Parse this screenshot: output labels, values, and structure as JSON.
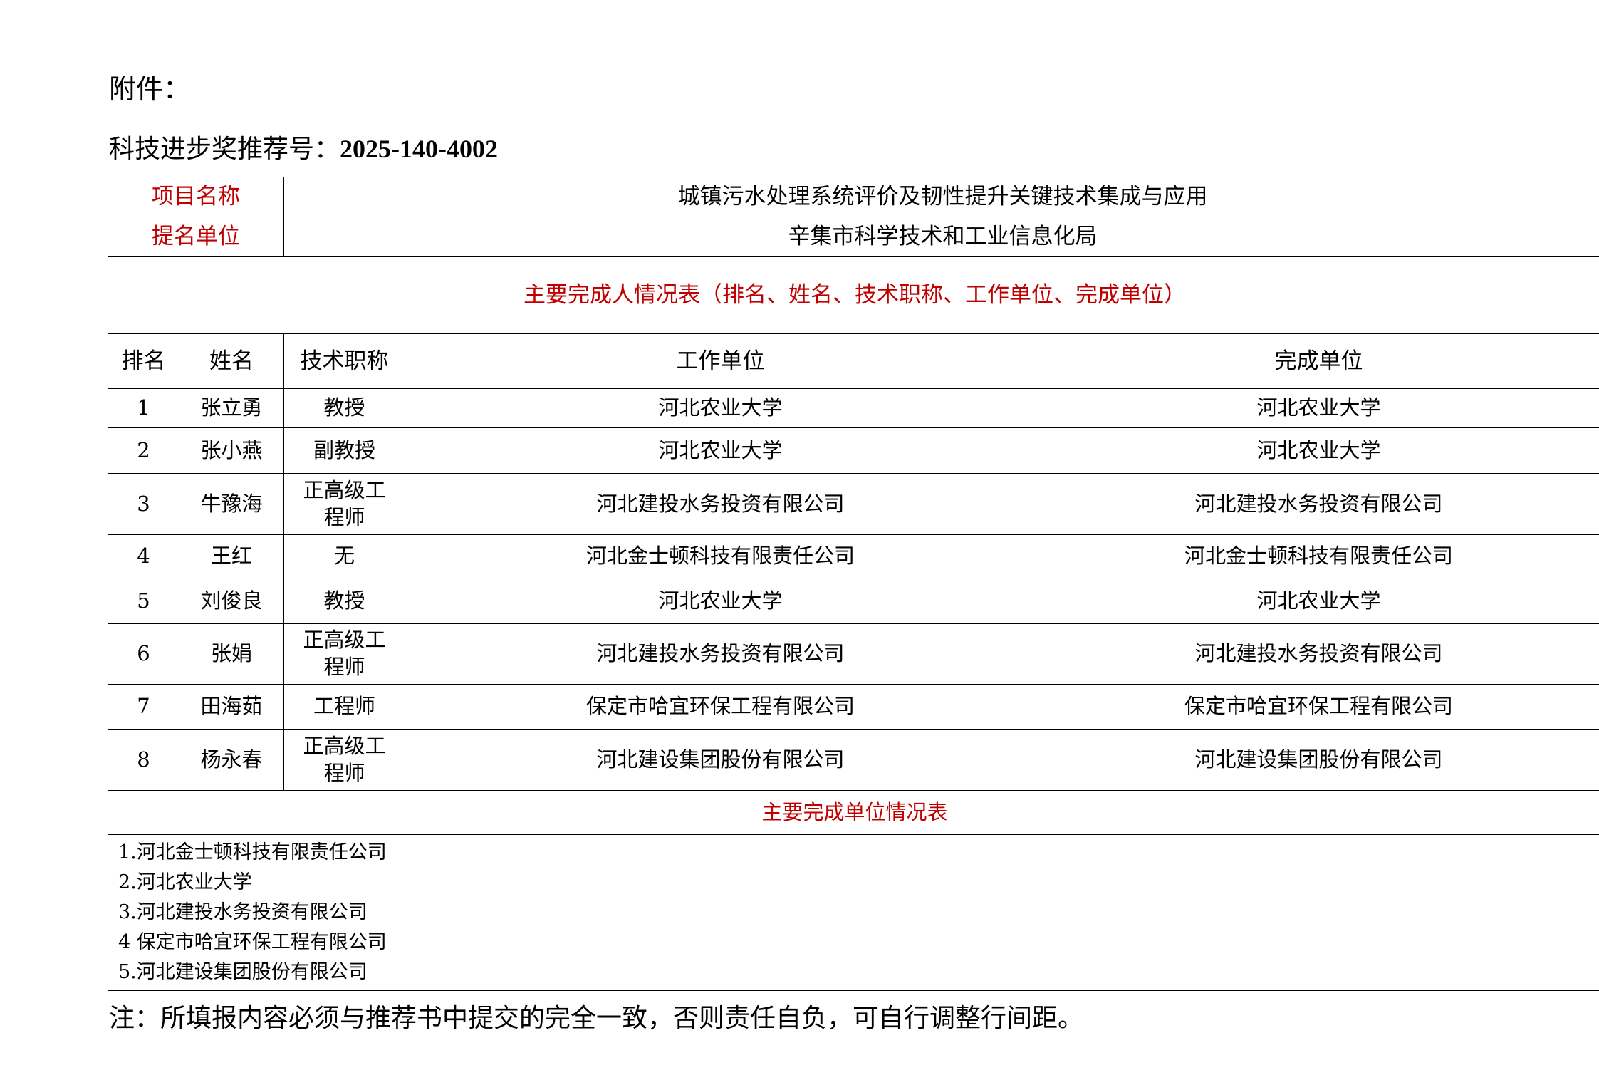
{
  "attachment_label": "附件：",
  "recommendation": {
    "label": "科技进步奖推荐号：",
    "number": "2025-140-4002"
  },
  "project": {
    "label": "项目名称",
    "value": "城镇污水处理系统评价及韧性提升关键技术集成与应用"
  },
  "nominator": {
    "label": "提名单位",
    "value": "辛集市科学技术和工业信息化局"
  },
  "persons_title": "主要完成人情况表（排名、姓名、技术职称、工作单位、完成单位）",
  "headers": [
    "排名",
    "姓名",
    "技术职称",
    "工作单位",
    "完成单位"
  ],
  "rows": [
    [
      "1",
      "张立勇",
      "教授",
      "河北农业大学",
      "河北农业大学"
    ],
    [
      "2",
      "张小燕",
      "副教授",
      "河北农业大学",
      "河北农业大学"
    ],
    [
      "3",
      "牛豫海",
      "正高级工程师",
      "河北建投水务投资有限公司",
      "河北建投水务投资有限公司"
    ],
    [
      "4",
      "王红",
      "无",
      "河北金士顿科技有限责任公司",
      "河北金士顿科技有限责任公司"
    ],
    [
      "5",
      "刘俊良",
      "教授",
      "河北农业大学",
      "河北农业大学"
    ],
    [
      "6",
      "张娟",
      "正高级工程师",
      "河北建投水务投资有限公司",
      "河北建投水务投资有限公司"
    ],
    [
      "7",
      "田海茹",
      "工程师",
      "保定市哈宜环保工程有限公司",
      "保定市哈宜环保工程有限公司"
    ],
    [
      "8",
      "杨永春",
      "正高级工程师",
      "河北建设集团股份有限公司",
      "河北建设集团股份有限公司"
    ]
  ],
  "units_title": "主要完成单位情况表",
  "units": [
    "1.河北金士顿科技有限责任公司",
    "2.河北农业大学",
    "3.河北建投水务投资有限公司",
    "4 保定市哈宜环保工程有限公司",
    "5.河北建设集团股份有限公司"
  ],
  "note": "注：所填报内容必须与推荐书中提交的完全一致，否则责任自负，可自行调整行间距。",
  "colors": {
    "label_red": "#c00000"
  }
}
